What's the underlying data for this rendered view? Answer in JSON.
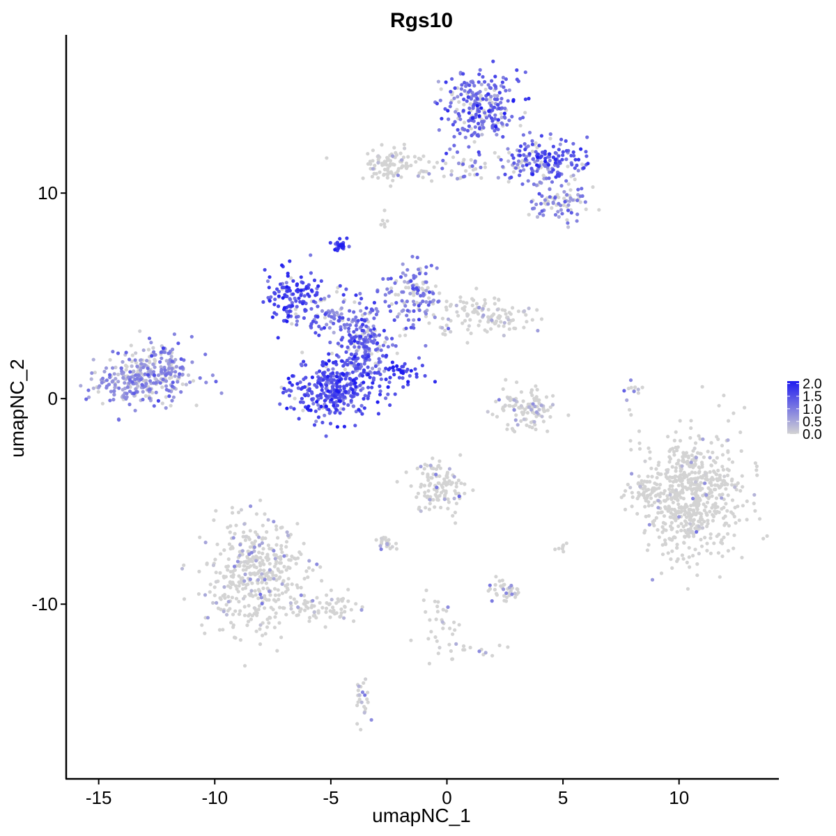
{
  "chart_data": {
    "type": "scatter",
    "title": "Rgs10",
    "xlabel": "umapNC_1",
    "ylabel": "umapNC_2",
    "xlim": [
      -16.4,
      14.3
    ],
    "ylim": [
      -18.5,
      17.7
    ],
    "x_ticks": [
      -15,
      -10,
      -5,
      0,
      5,
      10
    ],
    "y_ticks": [
      10,
      0,
      -10
    ],
    "x_tick_labels": [
      "-15",
      "-10",
      "-5",
      "0",
      "5",
      "10"
    ],
    "y_tick_labels": [
      "10",
      "0",
      "-10"
    ],
    "grid": false,
    "legend_position": "right",
    "color_scale": {
      "low": "#d3d3d3",
      "high": "#1f1cf0",
      "min": 0.0,
      "max": 2.1,
      "breaks": [
        2.0,
        1.5,
        1.0,
        0.5,
        0.0
      ],
      "labels": [
        "2.0",
        "1.5",
        "1.0",
        "0.5",
        "0.0"
      ]
    },
    "clusters": [
      {
        "cx": -13.0,
        "cy": 1.0,
        "sx": 1.1,
        "sy": 0.6,
        "n": 320,
        "expr_mean": 0.7,
        "expr_frac": 0.75
      },
      {
        "cx": -12.0,
        "cy": 2.2,
        "sx": 0.5,
        "sy": 0.4,
        "n": 30,
        "expr_mean": 0.8,
        "expr_frac": 0.8
      },
      {
        "cx": -8.2,
        "cy": -8.6,
        "sx": 1.1,
        "sy": 1.4,
        "n": 430,
        "expr_mean": 0.4,
        "expr_frac": 0.15
      },
      {
        "cx": -5.4,
        "cy": -10.2,
        "sx": 1.0,
        "sy": 0.35,
        "n": 70,
        "expr_mean": 0.4,
        "expr_frac": 0.12
      },
      {
        "cx": -4.9,
        "cy": 0.5,
        "sx": 0.9,
        "sy": 0.7,
        "n": 330,
        "expr_mean": 1.5,
        "expr_frac": 0.95
      },
      {
        "cx": -3.6,
        "cy": 2.6,
        "sx": 0.6,
        "sy": 0.9,
        "n": 200,
        "expr_mean": 1.2,
        "expr_frac": 0.85
      },
      {
        "cx": -6.6,
        "cy": 5.0,
        "sx": 0.6,
        "sy": 0.6,
        "n": 120,
        "expr_mean": 1.5,
        "expr_frac": 0.95
      },
      {
        "cx": -5.0,
        "cy": 4.2,
        "sx": 1.0,
        "sy": 0.5,
        "n": 90,
        "expr_mean": 1.1,
        "expr_frac": 0.8
      },
      {
        "cx": -1.3,
        "cy": 5.0,
        "sx": 0.6,
        "sy": 0.8,
        "n": 120,
        "expr_mean": 1.0,
        "expr_frac": 0.7
      },
      {
        "cx": 1.6,
        "cy": 4.0,
        "sx": 1.0,
        "sy": 0.5,
        "n": 120,
        "expr_mean": 0.3,
        "expr_frac": 0.2
      },
      {
        "cx": -4.6,
        "cy": 7.4,
        "sx": 0.15,
        "sy": 0.2,
        "n": 25,
        "expr_mean": 1.9,
        "expr_frac": 1.0
      },
      {
        "cx": -1.8,
        "cy": 1.3,
        "sx": 0.45,
        "sy": 0.35,
        "n": 40,
        "expr_mean": 1.8,
        "expr_frac": 1.0
      },
      {
        "cx": 1.5,
        "cy": 14.2,
        "sx": 0.8,
        "sy": 0.8,
        "n": 260,
        "expr_mean": 1.2,
        "expr_frac": 0.85
      },
      {
        "cx": 4.3,
        "cy": 11.5,
        "sx": 0.9,
        "sy": 0.5,
        "n": 170,
        "expr_mean": 1.3,
        "expr_frac": 0.85
      },
      {
        "cx": 4.8,
        "cy": 9.6,
        "sx": 0.6,
        "sy": 0.5,
        "n": 80,
        "expr_mean": 0.9,
        "expr_frac": 0.6
      },
      {
        "cx": -2.3,
        "cy": 11.4,
        "sx": 0.6,
        "sy": 0.4,
        "n": 90,
        "expr_mean": 0.3,
        "expr_frac": 0.1
      },
      {
        "cx": 0.6,
        "cy": 11.2,
        "sx": 1.3,
        "sy": 0.3,
        "n": 60,
        "expr_mean": 0.7,
        "expr_frac": 0.4
      },
      {
        "cx": 3.4,
        "cy": -0.6,
        "sx": 0.7,
        "sy": 0.5,
        "n": 110,
        "expr_mean": 0.4,
        "expr_frac": 0.2
      },
      {
        "cx": 10.6,
        "cy": -4.8,
        "sx": 1.1,
        "sy": 1.5,
        "n": 650,
        "expr_mean": 0.3,
        "expr_frac": 0.05
      },
      {
        "cx": 8.5,
        "cy": -4.6,
        "sx": 0.2,
        "sy": 0.3,
        "n": 30,
        "expr_mean": 0.3,
        "expr_frac": 0.05
      },
      {
        "cx": -0.3,
        "cy": -4.2,
        "sx": 0.6,
        "sy": 0.6,
        "n": 120,
        "expr_mean": 0.5,
        "expr_frac": 0.12
      },
      {
        "cx": 2.5,
        "cy": -9.4,
        "sx": 0.35,
        "sy": 0.3,
        "n": 35,
        "expr_mean": 0.5,
        "expr_frac": 0.3
      },
      {
        "cx": -2.6,
        "cy": -7.0,
        "sx": 0.25,
        "sy": 0.2,
        "n": 25,
        "expr_mean": 0.4,
        "expr_frac": 0.2
      },
      {
        "cx": -0.3,
        "cy": -11.0,
        "sx": 0.4,
        "sy": 0.8,
        "n": 30,
        "expr_mean": 0.4,
        "expr_frac": 0.1
      },
      {
        "cx": -3.6,
        "cy": -14.8,
        "sx": 0.15,
        "sy": 0.6,
        "n": 25,
        "expr_mean": 0.5,
        "expr_frac": 0.3
      },
      {
        "cx": 5.0,
        "cy": -7.2,
        "sx": 0.12,
        "sy": 0.15,
        "n": 8,
        "expr_mean": 0.3,
        "expr_frac": 0.1
      },
      {
        "cx": -2.8,
        "cy": 8.6,
        "sx": 0.1,
        "sy": 0.2,
        "n": 6,
        "expr_mean": 0.5,
        "expr_frac": 0.3
      },
      {
        "cx": 7.9,
        "cy": 0.3,
        "sx": 0.15,
        "sy": 0.6,
        "n": 12,
        "expr_mean": 0.7,
        "expr_frac": 0.5
      },
      {
        "cx": 1.3,
        "cy": -12.2,
        "sx": 0.8,
        "sy": 0.2,
        "n": 15,
        "expr_mean": 0.4,
        "expr_frac": 0.2
      }
    ]
  }
}
